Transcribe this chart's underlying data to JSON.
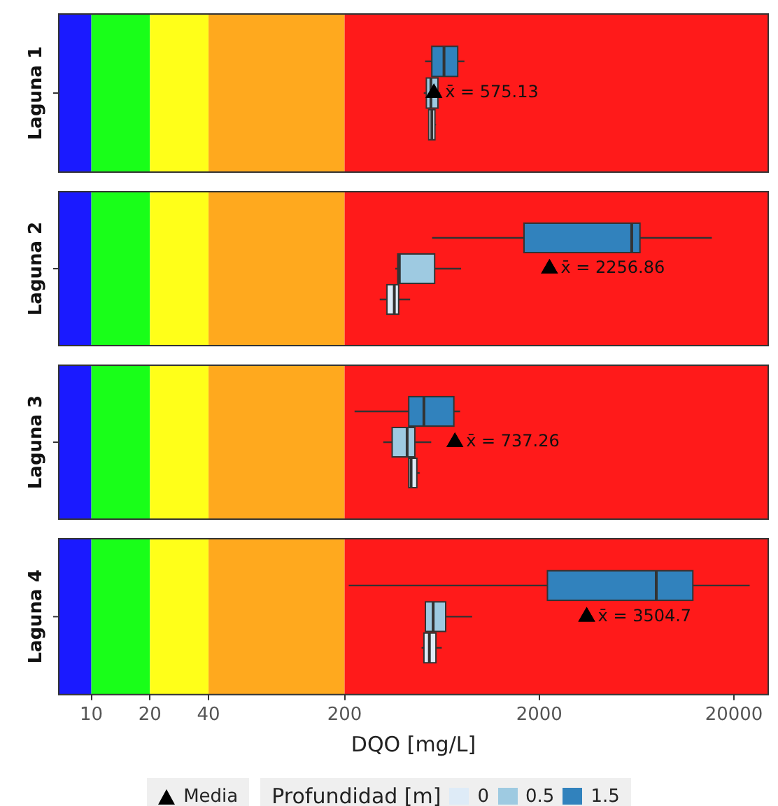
{
  "chart_data": [
    {
      "type": "box",
      "orientation": "horizontal",
      "categories": [
        "Laguna 1"
      ],
      "xlim": [
        6.8,
        30000
      ],
      "xticks": [
        10,
        20,
        40,
        200,
        2000,
        20000
      ],
      "log": "x",
      "tick_labels": "y",
      "legend": false,
      "bands": [
        {
          "axis": "x",
          "from": 6.8,
          "to": 10,
          "color": "#1a1aff"
        },
        {
          "axis": "x",
          "from": 10,
          "to": 20,
          "color": "#19ff19"
        },
        {
          "axis": "x",
          "from": 20,
          "to": 40,
          "color": "#ffff19"
        },
        {
          "axis": "x",
          "from": 40,
          "to": 200,
          "color": "#ffa91e"
        },
        {
          "axis": "x",
          "from": 200,
          "to": 30000,
          "color": "#ff1a1a"
        }
      ],
      "series": [
        {
          "color": "#deebf7",
          "boxes": [
            {
              "low": 540,
              "q1": 541,
              "median": 561,
              "q3": 582,
              "high": 590
            }
          ]
        },
        {
          "color": "#9ecae1",
          "boxes": [
            {
              "low": 510,
              "q1": 526,
              "median": 555,
              "q3": 603,
              "high": 620
            }
          ]
        },
        {
          "color": "#3182bd",
          "boxes": [
            {
              "low": 518,
              "q1": 561,
              "median": 648,
              "q3": 762,
              "high": 825
            }
          ]
        },
        {
          "type": "scatter",
          "marker": "triangle",
          "color": "#000000",
          "x": [
            "Laguna 1"
          ],
          "values": [
            575.13
          ]
        }
      ],
      "annotations": [
        {
          "text": "x̄ = 575.13",
          "x": 575.13,
          "y": "Laguna 1"
        }
      ]
    },
    {
      "type": "box",
      "orientation": "horizontal",
      "categories": [
        "Laguna 2"
      ],
      "xlim": [
        6.8,
        30000
      ],
      "xticks": [
        10,
        20,
        40,
        200,
        2000,
        20000
      ],
      "log": "x",
      "tick_labels": "y",
      "legend": false,
      "bands": [
        {
          "axis": "x",
          "from": 6.8,
          "to": 10,
          "color": "#1a1aff"
        },
        {
          "axis": "x",
          "from": 10,
          "to": 20,
          "color": "#19ff19"
        },
        {
          "axis": "x",
          "from": 20,
          "to": 40,
          "color": "#ffff19"
        },
        {
          "axis": "x",
          "from": 40,
          "to": 200,
          "color": "#ffa91e"
        },
        {
          "axis": "x",
          "from": 200,
          "to": 30000,
          "color": "#ff1a1a"
        }
      ],
      "series": [
        {
          "color": "#deebf7",
          "boxes": [
            {
              "low": 303,
              "q1": 330,
              "median": 360,
              "q3": 379,
              "high": 434
            }
          ]
        },
        {
          "color": "#9ecae1",
          "boxes": [
            {
              "low": 364,
              "q1": 375,
              "median": 382,
              "q3": 580,
              "high": 793
            }
          ]
        },
        {
          "color": "#3182bd",
          "boxes": [
            {
              "low": 563,
              "q1": 1670,
              "median": 5970,
              "q3": 6580,
              "high": 15400
            }
          ]
        },
        {
          "type": "scatter",
          "marker": "triangle",
          "color": "#000000",
          "x": [
            "Laguna 2"
          ],
          "values": [
            2256.86
          ]
        }
      ],
      "annotations": [
        {
          "text": "x̄ = 2256.86",
          "x": 2256.86,
          "y": "Laguna 2"
        }
      ]
    },
    {
      "type": "box",
      "orientation": "horizontal",
      "categories": [
        "Laguna 3"
      ],
      "xlim": [
        6.8,
        30000
      ],
      "xticks": [
        10,
        20,
        40,
        200,
        2000,
        20000
      ],
      "log": "x",
      "tick_labels": "y",
      "legend": false,
      "bands": [
        {
          "axis": "x",
          "from": 6.8,
          "to": 10,
          "color": "#1a1aff"
        },
        {
          "axis": "x",
          "from": 10,
          "to": 20,
          "color": "#19ff19"
        },
        {
          "axis": "x",
          "from": 20,
          "to": 40,
          "color": "#ffff19"
        },
        {
          "axis": "x",
          "from": 40,
          "to": 200,
          "color": "#ffa91e"
        },
        {
          "axis": "x",
          "from": 200,
          "to": 30000,
          "color": "#ff1a1a"
        }
      ],
      "series": [
        {
          "color": "#deebf7",
          "boxes": [
            {
              "low": 427,
              "q1": 427,
              "median": 439,
              "q3": 470,
              "high": 486
            }
          ]
        },
        {
          "color": "#9ecae1",
          "boxes": [
            {
              "low": 316,
              "q1": 351,
              "median": 419,
              "q3": 459,
              "high": 557
            }
          ]
        },
        {
          "color": "#3182bd",
          "boxes": [
            {
              "low": 225,
              "q1": 427,
              "median": 511,
              "q3": 728,
              "high": 784
            }
          ]
        },
        {
          "type": "scatter",
          "marker": "triangle",
          "color": "#000000",
          "x": [
            "Laguna 3"
          ],
          "values": [
            737.26
          ]
        }
      ],
      "annotations": [
        {
          "text": "x̄ = 737.26",
          "x": 737.26,
          "y": "Laguna 3"
        }
      ]
    },
    {
      "type": "box",
      "orientation": "horizontal",
      "categories": [
        "Laguna 4"
      ],
      "xlim": [
        6.8,
        30000
      ],
      "xticks": [
        10,
        20,
        40,
        200,
        2000,
        20000
      ],
      "log": "x",
      "xlabel": "DQO [mg/L]",
      "legend": "bottom",
      "legend_title": "Profundidad [m]",
      "bands": [
        {
          "axis": "x",
          "from": 6.8,
          "to": 10,
          "color": "#1a1aff"
        },
        {
          "axis": "x",
          "from": 10,
          "to": 20,
          "color": "#19ff19"
        },
        {
          "axis": "x",
          "from": 20,
          "to": 40,
          "color": "#ffff19"
        },
        {
          "axis": "x",
          "from": 40,
          "to": 200,
          "color": "#ffa91e"
        },
        {
          "axis": "x",
          "from": 200,
          "to": 30000,
          "color": "#ff1a1a"
        }
      ],
      "series": [
        {
          "name": "0",
          "color": "#deebf7",
          "boxes": [
            {
              "low": 497,
              "q1": 511,
              "median": 545,
              "q3": 589,
              "high": 631
            }
          ]
        },
        {
          "name": "0.5",
          "color": "#9ecae1",
          "boxes": [
            {
              "low": 520,
              "q1": 520,
              "median": 570,
              "q3": 661,
              "high": 904
            }
          ]
        },
        {
          "name": "1.5",
          "color": "#3182bd",
          "boxes": [
            {
              "low": 210,
              "q1": 2203,
              "median": 7980,
              "q3": 12300,
              "high": 24100
            }
          ]
        },
        {
          "name": "Media",
          "type": "scatter",
          "marker": "triangle",
          "color": "#000000",
          "x": [
            "Laguna 4"
          ],
          "values": [
            3504.7
          ]
        }
      ],
      "annotations": [
        {
          "text": "x̄ = 3504.7",
          "x": 3504.7,
          "y": "Laguna 4"
        }
      ]
    }
  ]
}
